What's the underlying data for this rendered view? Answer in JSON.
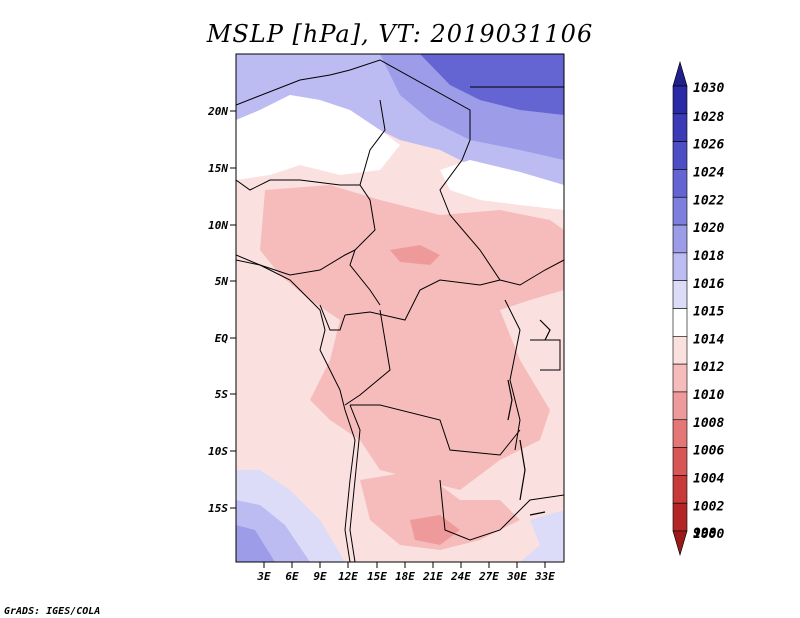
{
  "title": "MSLP [hPa], VT: 2019031106",
  "credit": "GrADS: IGES/COLA",
  "lat_labels": [
    "20N",
    "15N",
    "10N",
    "5N",
    "EQ",
    "5S",
    "10S",
    "15S"
  ],
  "lon_labels": [
    "3E",
    "6E",
    "9E",
    "12E",
    "15E",
    "18E",
    "21E",
    "24E",
    "27E",
    "30E",
    "33E"
  ],
  "colorbar": {
    "levels": [
      "1030",
      "1028",
      "1026",
      "1024",
      "1022",
      "1020",
      "1018",
      "1016",
      "1015",
      "1014",
      "1012",
      "1010",
      "1008",
      "1006",
      "1004",
      "1002",
      "1000",
      "998"
    ],
    "colors": [
      "#20208c",
      "#2a2aa6",
      "#3b3bb8",
      "#4d4dc6",
      "#6464d2",
      "#7e7ede",
      "#9c9ce8",
      "#bcbcf2",
      "#dcdcf8",
      "#ffffff",
      "#fbe0e0",
      "#f6bcbc",
      "#ee9a9a",
      "#e47676",
      "#d85656",
      "#c83a3a",
      "#b42626",
      "#9a1a1a"
    ]
  },
  "field_colors": {
    "high_1022": "#6464d2",
    "high_1018": "#9c9ce8",
    "high_1016": "#bcbcf2",
    "high_1015": "#dcdcf8",
    "neutral_1014": "#ffffff",
    "low_1012": "#fbe0e0",
    "low_1010": "#f6bcbc",
    "low_1008": "#ee9a9a"
  }
}
